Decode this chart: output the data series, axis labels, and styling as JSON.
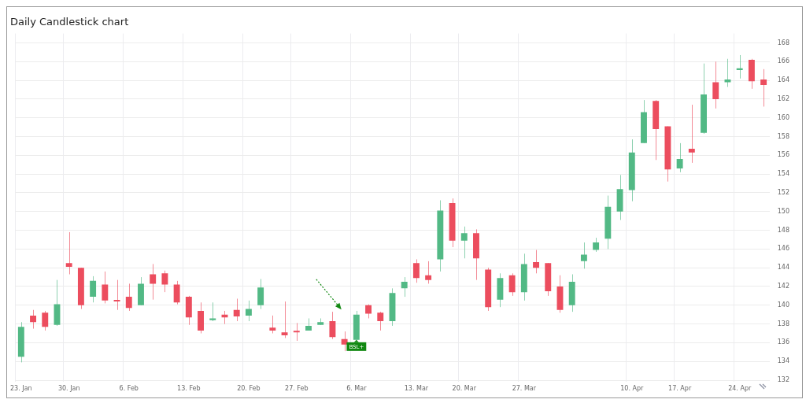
{
  "chart_data": {
    "type": "candlestick",
    "title": "Daily Candlestick chart",
    "categories": [
      "23. Jan",
      null,
      null,
      null,
      "30. Jan",
      null,
      null,
      null,
      null,
      "6. Feb",
      null,
      null,
      null,
      null,
      "13. Feb",
      null,
      null,
      null,
      null,
      "20. Feb",
      null,
      null,
      null,
      "27. Feb",
      null,
      null,
      null,
      null,
      "6. Mar",
      null,
      null,
      null,
      null,
      "13. Mar",
      null,
      null,
      null,
      "20. Mar",
      null,
      null,
      null,
      null,
      "27. Mar",
      null,
      null,
      null,
      null,
      null,
      null,
      null,
      null,
      "10. Apr",
      null,
      null,
      null,
      "17. Apr",
      null,
      null,
      null,
      null,
      "24. Apr",
      null,
      null
    ],
    "ohlc": [
      [
        134.5,
        138.2,
        133.9,
        137.7
      ],
      [
        138.9,
        139.5,
        137.5,
        138.2
      ],
      [
        139.2,
        139.4,
        137.3,
        137.7
      ],
      [
        137.9,
        142.7,
        137.8,
        140.1
      ],
      [
        144.5,
        147.8,
        143.3,
        144.1
      ],
      [
        144.0,
        144.0,
        139.6,
        140.0
      ],
      [
        140.9,
        143.1,
        140.3,
        142.6
      ],
      [
        142.2,
        143.6,
        140.2,
        140.5
      ],
      [
        140.5,
        142.7,
        139.5,
        140.4
      ],
      [
        140.9,
        142.3,
        139.4,
        139.7
      ],
      [
        140.0,
        143.0,
        140.0,
        142.3
      ],
      [
        143.3,
        144.4,
        140.6,
        142.3
      ],
      [
        143.4,
        143.7,
        141.4,
        142.2
      ],
      [
        142.2,
        142.6,
        140.1,
        140.3
      ],
      [
        140.9,
        141.0,
        137.9,
        138.7
      ],
      [
        139.4,
        140.3,
        137.0,
        137.3
      ],
      [
        138.4,
        140.3,
        138.3,
        138.6
      ],
      [
        139.0,
        139.4,
        138.0,
        138.7
      ],
      [
        139.5,
        140.7,
        138.3,
        138.8
      ],
      [
        138.9,
        140.5,
        138.3,
        139.6
      ],
      [
        140.0,
        142.8,
        139.6,
        141.9
      ],
      [
        137.6,
        138.9,
        137.0,
        137.3
      ],
      [
        137.1,
        140.4,
        136.5,
        136.8
      ],
      [
        137.2,
        138.1,
        136.2,
        137.1
      ],
      [
        137.3,
        138.6,
        137.3,
        137.8
      ],
      [
        137.9,
        138.6,
        137.9,
        138.2
      ],
      [
        138.3,
        139.3,
        136.4,
        136.6
      ],
      [
        136.4,
        137.2,
        135.1,
        135.8
      ],
      [
        136.3,
        139.4,
        136.3,
        139.0
      ],
      [
        140.0,
        140.1,
        138.6,
        139.1
      ],
      [
        139.2,
        139.3,
        137.3,
        138.3
      ],
      [
        138.3,
        141.8,
        137.8,
        141.3
      ],
      [
        141.8,
        143.0,
        140.9,
        142.5
      ],
      [
        144.5,
        144.9,
        142.4,
        142.9
      ],
      [
        143.2,
        144.7,
        142.3,
        142.7
      ],
      [
        144.9,
        151.2,
        143.6,
        150.1
      ],
      [
        150.9,
        151.4,
        146.2,
        146.9
      ],
      [
        146.9,
        148.4,
        145.0,
        147.7
      ],
      [
        147.7,
        148.1,
        142.7,
        145.0
      ],
      [
        143.8,
        144.0,
        139.4,
        139.8
      ],
      [
        140.6,
        143.4,
        139.8,
        142.9
      ],
      [
        143.2,
        143.4,
        141.0,
        141.4
      ],
      [
        141.4,
        145.5,
        140.5,
        144.4
      ],
      [
        144.6,
        145.9,
        143.4,
        144.0
      ],
      [
        144.5,
        144.5,
        141.0,
        141.5
      ],
      [
        142.0,
        143.2,
        139.2,
        139.5
      ],
      [
        140.0,
        143.3,
        139.3,
        142.5
      ],
      [
        144.7,
        146.7,
        143.9,
        145.4
      ],
      [
        145.9,
        147.2,
        145.7,
        146.7
      ],
      [
        147.1,
        151.7,
        146.0,
        150.5
      ],
      [
        150.0,
        153.9,
        149.1,
        152.4
      ],
      [
        152.3,
        157.7,
        151.1,
        156.3
      ],
      [
        157.3,
        161.9,
        157.3,
        160.6
      ],
      [
        161.8,
        161.9,
        155.5,
        158.8
      ],
      [
        159.1,
        159.1,
        153.2,
        154.5
      ],
      [
        154.6,
        157.3,
        154.2,
        155.6
      ],
      [
        156.7,
        161.4,
        155.2,
        156.3
      ],
      [
        158.4,
        165.8,
        158.3,
        162.5
      ],
      [
        163.8,
        166.0,
        161.0,
        162.0
      ],
      [
        163.8,
        166.3,
        163.3,
        164.1
      ],
      [
        165.1,
        166.7,
        164.2,
        165.3
      ],
      [
        166.2,
        166.3,
        163.1,
        163.9
      ],
      [
        164.1,
        165.2,
        161.2,
        163.5
      ]
    ],
    "colors": [
      "#52b985",
      "#ec4d5e",
      "#ec4d5e",
      "#52b985",
      "#ec4d5e",
      "#ec4d5e",
      "#52b985",
      "#ec4d5e",
      "#ec4d5e",
      "#ec4d5e",
      "#52b985",
      "#ec4d5e",
      "#ec4d5e",
      "#ec4d5e",
      "#ec4d5e",
      "#ec4d5e",
      "#52b985",
      "#ec4d5e",
      "#ec4d5e",
      "#52b985",
      "#52b985",
      "#ec4d5e",
      "#ec4d5e",
      "#ec4d5e",
      "#52b985",
      "#52b985",
      "#ec4d5e",
      "#ec4d5e",
      "#52b985",
      "#ec4d5e",
      "#ec4d5e",
      "#52b985",
      "#52b985",
      "#ec4d5e",
      "#ec4d5e",
      "#52b985",
      "#ec4d5e",
      "#52b985",
      "#ec4d5e",
      "#ec4d5e",
      "#52b985",
      "#ec4d5e",
      "#52b985",
      "#ec4d5e",
      "#ec4d5e",
      "#ec4d5e",
      "#52b985",
      "#52b985",
      "#52b985",
      "#52b985",
      "#52b985",
      "#52b985",
      "#52b985",
      "#ec4d5e",
      "#ec4d5e",
      "#52b985",
      "#ec4d5e",
      "#52b985",
      "#ec4d5e",
      "#52b985",
      "#52b985",
      "#ec4d5e",
      "#ec4d5e"
    ],
    "ylim": [
      131.8,
      169
    ],
    "yticks": [
      132,
      134,
      136,
      138,
      140,
      142,
      144,
      146,
      148,
      150,
      152,
      154,
      156,
      158,
      160,
      162,
      164,
      166,
      168
    ],
    "grid": true,
    "annotations": [
      {
        "text": "BSL+",
        "x": "6. Mar",
        "y": 136.3
      }
    ]
  }
}
